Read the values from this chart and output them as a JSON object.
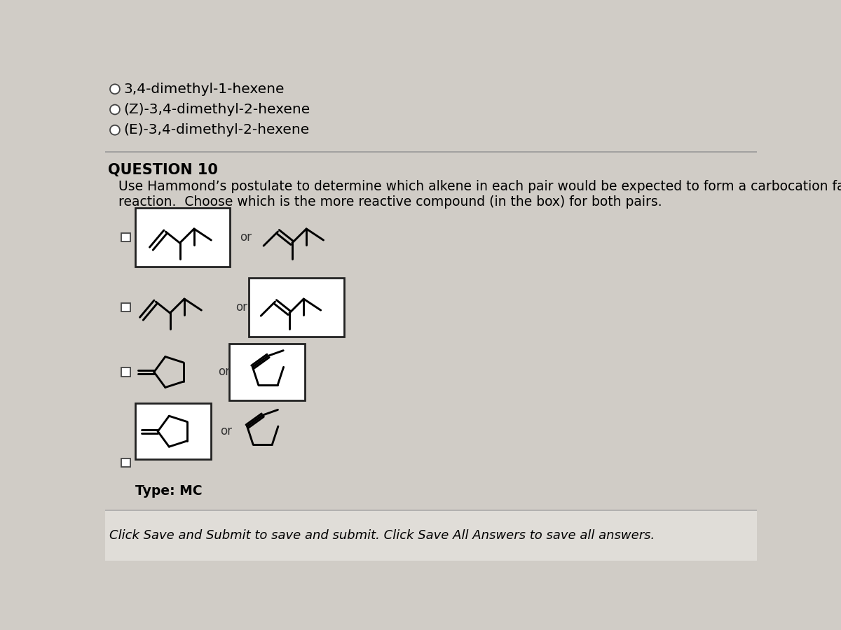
{
  "background_color": "#d0ccc6",
  "title_prev_options": [
    "3,4-dimethyl-1-hexene",
    "(Z)-3,4-dimethyl-2-hexene",
    "(E)-3,4-dimethyl-2-hexene"
  ],
  "question_number": "QUESTION 10",
  "question_text": "Use Hammond’s postulate to determine which alkene in each pair would be expected to form a carbocation faster in\nreaction.  Choose which is the more reactive compound (in the box) for both pairs.",
  "or_text": "or",
  "type_text": "Type: MC",
  "footer_text": "Click Save and Submit to save and submit. Click Save All Answers to save all answers.",
  "text_color": "#000000"
}
